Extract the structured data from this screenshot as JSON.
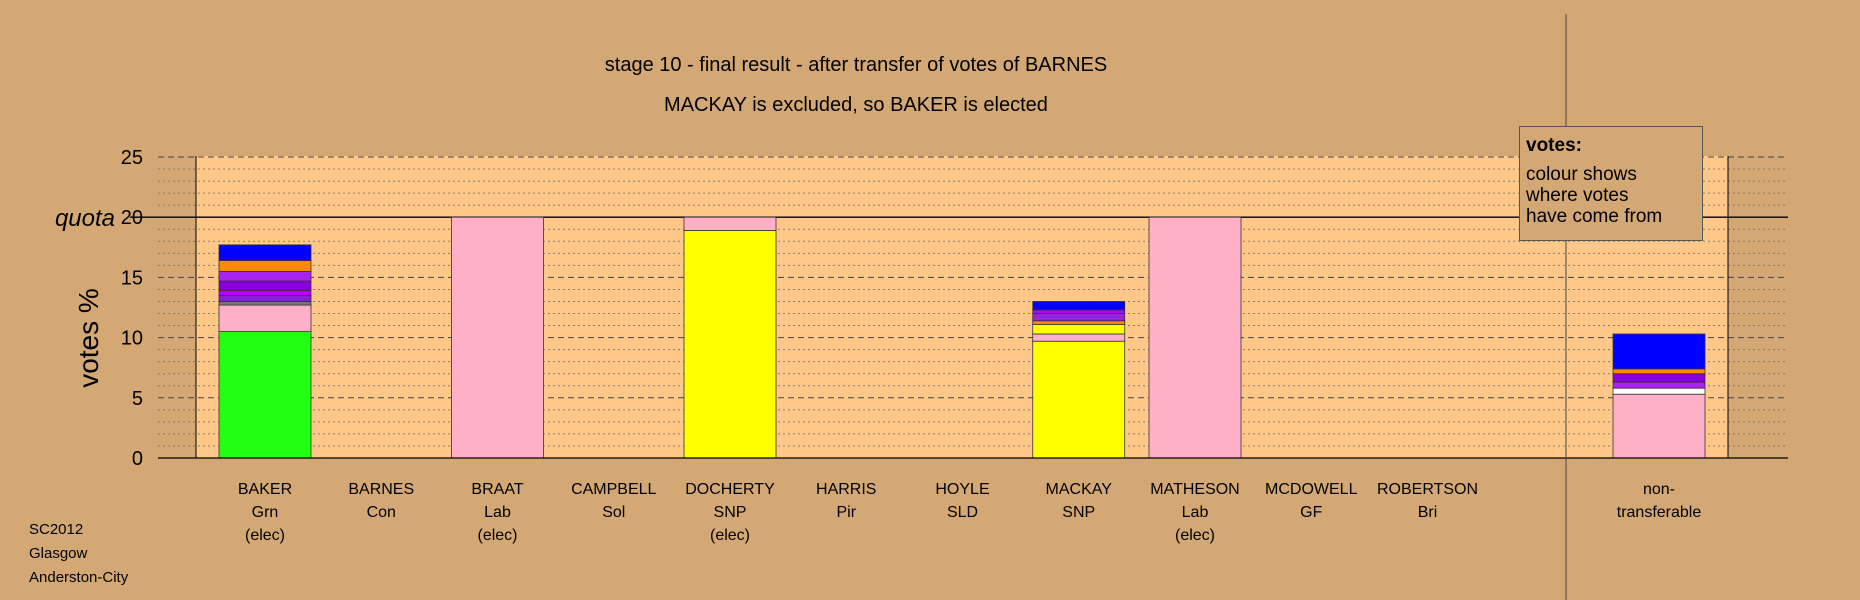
{
  "chart_data": {
    "type": "bar",
    "stacked": true,
    "title": "stage 10 - final result - after transfer of votes of BARNES",
    "subtitle": "MACKAY is excluded, so BAKER is elected",
    "ylabel": "votes %",
    "ylim": [
      0,
      25
    ],
    "yticks": [
      0,
      5,
      10,
      15,
      20,
      25
    ],
    "quota": {
      "label": "quota",
      "value": 20
    },
    "grid": true,
    "categories": [
      {
        "name": "BAKER",
        "party": "Grn",
        "status": "(elec)"
      },
      {
        "name": "BARNES",
        "party": "Con",
        "status": ""
      },
      {
        "name": "BRAAT",
        "party": "Lab",
        "status": "(elec)"
      },
      {
        "name": "CAMPBELL",
        "party": "Sol",
        "status": ""
      },
      {
        "name": "DOCHERTY",
        "party": "SNP",
        "status": "(elec)"
      },
      {
        "name": "HARRIS",
        "party": "Pir",
        "status": ""
      },
      {
        "name": "HOYLE",
        "party": "SLD",
        "status": ""
      },
      {
        "name": "MACKAY",
        "party": "SNP",
        "status": ""
      },
      {
        "name": "MATHESON",
        "party": "Lab",
        "status": "(elec)"
      },
      {
        "name": "MCDOWELL",
        "party": "GF",
        "status": ""
      },
      {
        "name": "ROBERTSON",
        "party": "Bri",
        "status": ""
      }
    ],
    "nontransferable": {
      "line1": "non-",
      "line2": "transferable"
    },
    "stacks": [
      [
        {
          "v": 10.5,
          "c": "#22ff11"
        },
        {
          "v": 2.2,
          "c": "#ffb0c8"
        },
        {
          "v": 0.3,
          "c": "#777777"
        },
        {
          "v": 0.5,
          "c": "#8822cc"
        },
        {
          "v": 0.4,
          "c": "#bb00ff"
        },
        {
          "v": 0.8,
          "c": "#8800dd"
        },
        {
          "v": 0.8,
          "c": "#aa22ee"
        },
        {
          "v": 0.9,
          "c": "#ff8800"
        },
        {
          "v": 1.3,
          "c": "#0000ff"
        }
      ],
      [],
      [
        {
          "v": 20,
          "c": "#ffb0c8"
        }
      ],
      [],
      [
        {
          "v": 18.9,
          "c": "#ffff00"
        },
        {
          "v": 1.1,
          "c": "#ffb0c8"
        }
      ],
      [],
      [],
      [
        {
          "v": 9.7,
          "c": "#ffff00"
        },
        {
          "v": 0.6,
          "c": "#ffb0c8"
        },
        {
          "v": 0.8,
          "c": "#ffff00"
        },
        {
          "v": 0.3,
          "c": "#ff8800"
        },
        {
          "v": 0.6,
          "c": "#9922dd"
        },
        {
          "v": 0.3,
          "c": "#bb00ff"
        },
        {
          "v": 0.7,
          "c": "#0000ff"
        }
      ],
      [
        {
          "v": 20,
          "c": "#ffb0c8"
        }
      ],
      [],
      []
    ],
    "nontransferable_stack": [
      {
        "v": 5.3,
        "c": "#ffb0c8"
      },
      {
        "v": 0.5,
        "c": "#ffffff"
      },
      {
        "v": 0.5,
        "c": "#aa22ee"
      },
      {
        "v": 0.7,
        "c": "#8800dd"
      },
      {
        "v": 0.4,
        "c": "#ff8800"
      },
      {
        "v": 2.9,
        "c": "#0000ff"
      }
    ]
  },
  "legend": {
    "title": "votes:",
    "line1": "colour shows",
    "line2": "where votes",
    "line3": "have come from"
  },
  "meta": {
    "line1": "SC2012",
    "line2": "Glasgow",
    "line3": "Anderston-City"
  },
  "colors": {
    "background": "#d4a874",
    "plot_area": "#ffc889"
  }
}
